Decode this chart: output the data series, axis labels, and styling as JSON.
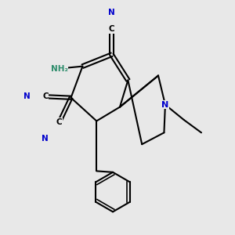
{
  "background_color": "#e8e8e8",
  "bond_color": "#000000",
  "bond_width": 1.5,
  "atom_colors": {
    "N": "#0000cc",
    "C": "#000000",
    "H": "#2d8c6b"
  },
  "figsize": [
    3.0,
    3.0
  ],
  "dpi": 100
}
